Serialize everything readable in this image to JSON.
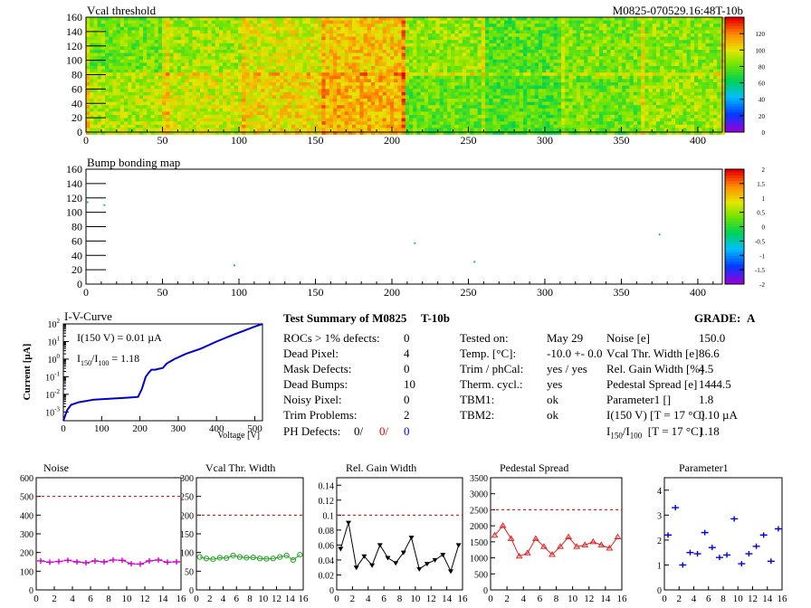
{
  "header": {
    "module_id": "M0825-070529.16:48T-10b"
  },
  "colors": {
    "noise": "#d000d0",
    "vcal": "#20a020",
    "gain": "#000000",
    "pedestal": "#e02020",
    "parameter1": "#0000e0",
    "limit": "#d00000",
    "iv": "#0000cc"
  },
  "chart_data": [
    {
      "type": "heatmap",
      "title": "Vcal threshold",
      "x_ticks": [
        "0",
        "50",
        "100",
        "150",
        "200",
        "250",
        "300",
        "350",
        "400"
      ],
      "y_ticks": [
        "0",
        "20",
        "40",
        "60",
        "80",
        "100",
        "120",
        "140",
        "160"
      ],
      "xlim": [
        0,
        416
      ],
      "ylim": [
        0,
        160
      ],
      "colorbar_ticks": [
        "0",
        "20",
        "40",
        "60",
        "80",
        "100",
        "120"
      ],
      "colorbar_range": [
        0,
        140
      ],
      "roc_blocks_top": [
        82,
        90,
        98,
        108,
        88,
        78,
        84,
        86
      ],
      "roc_blocks_bottom": [
        92,
        96,
        104,
        112,
        80,
        76,
        82,
        88
      ]
    },
    {
      "type": "heatmap",
      "title": "Bump bonding map",
      "x_ticks": [
        "0",
        "50",
        "100",
        "150",
        "200",
        "250",
        "300",
        "350",
        "400"
      ],
      "y_ticks": [
        "0",
        "20",
        "40",
        "60",
        "80",
        "100",
        "120",
        "140",
        "160"
      ],
      "xlim": [
        0,
        416
      ],
      "ylim": [
        0,
        160
      ],
      "colorbar_ticks": [
        "-2",
        "-1.5",
        "-1",
        "-0.5",
        "0",
        "0.5",
        "1",
        "1.5",
        "2"
      ],
      "colorbar_range": [
        -2,
        2
      ],
      "points": [
        [
          1,
          114
        ],
        [
          12,
          110
        ],
        [
          97,
          26
        ],
        [
          215,
          57
        ],
        [
          254,
          31
        ],
        [
          375,
          69
        ]
      ]
    },
    {
      "type": "line",
      "title": "I-V-Curve",
      "xlabel": "Voltage [V]",
      "ylabel": "Current [µA]",
      "x_ticks": [
        "0",
        "100",
        "200",
        "300",
        "400",
        "500"
      ],
      "xlim": [
        0,
        520
      ],
      "ylim_log10": [
        -3.5,
        2
      ],
      "y_tick_exponents": [
        -3,
        -2,
        -1,
        0,
        1,
        2
      ],
      "annotation_current_label": "I(150 V) = 0.01 µA",
      "annotation_ratio_label": "I",
      "annotation_ratio_sub1": "150",
      "annotation_ratio_mid": "/I",
      "annotation_ratio_sub2": "100",
      "annotation_ratio_value": "=  1.18",
      "points": [
        [
          0,
          -3.5
        ],
        [
          10,
          -2.9
        ],
        [
          20,
          -2.6
        ],
        [
          40,
          -2.45
        ],
        [
          80,
          -2.3
        ],
        [
          120,
          -2.25
        ],
        [
          160,
          -2.2
        ],
        [
          195,
          -2.15
        ],
        [
          205,
          -1.7
        ],
        [
          215,
          -1.0
        ],
        [
          222,
          -0.8
        ],
        [
          230,
          -0.6
        ],
        [
          240,
          -0.6
        ],
        [
          260,
          -0.5
        ],
        [
          270,
          -0.25
        ],
        [
          290,
          0.0
        ],
        [
          320,
          0.3
        ],
        [
          360,
          0.6
        ],
        [
          400,
          1.0
        ],
        [
          440,
          1.35
        ],
        [
          470,
          1.6
        ],
        [
          500,
          1.85
        ],
        [
          520,
          2.0
        ]
      ]
    },
    {
      "type": "scatter",
      "title": "Noise",
      "x_ticks": [
        "0",
        "2",
        "4",
        "6",
        "8",
        "10",
        "12",
        "14",
        "16"
      ],
      "y_ticks": [
        "0",
        "100",
        "200",
        "300",
        "400",
        "500",
        "600"
      ],
      "xlim": [
        0,
        16
      ],
      "ylim": [
        0,
        600
      ],
      "limit": 500,
      "x": [
        0,
        1,
        2,
        3,
        4,
        5,
        6,
        7,
        8,
        9,
        10,
        11,
        12,
        13,
        14,
        15
      ],
      "values": [
        155,
        148,
        152,
        158,
        150,
        145,
        155,
        150,
        160,
        158,
        140,
        138,
        155,
        160,
        148,
        150
      ]
    },
    {
      "type": "line",
      "title": "Vcal Thr. Width",
      "x_ticks": [
        "0",
        "2",
        "4",
        "6",
        "8",
        "10",
        "12",
        "14",
        "16"
      ],
      "y_ticks": [
        "0",
        "50",
        "100",
        "150",
        "200",
        "250",
        "300"
      ],
      "xlim": [
        0,
        16
      ],
      "ylim": [
        0,
        300
      ],
      "limit": 200,
      "x": [
        0,
        1,
        2,
        3,
        4,
        5,
        6,
        7,
        8,
        9,
        10,
        11,
        12,
        13,
        14,
        15
      ],
      "values": [
        88,
        84,
        82,
        86,
        85,
        92,
        88,
        86,
        87,
        84,
        83,
        84,
        88,
        92,
        80,
        94
      ]
    },
    {
      "type": "line",
      "title": "Rel. Gain Width",
      "x_ticks": [
        "0",
        "2",
        "4",
        "6",
        "8",
        "10",
        "12",
        "14",
        "16"
      ],
      "y_ticks": [
        "0",
        "0.02",
        "0.04",
        "0.06",
        "0.08",
        "0.1",
        "0.12",
        "0.14"
      ],
      "xlim": [
        0,
        16
      ],
      "ylim": [
        0,
        0.15
      ],
      "limit": 0.1,
      "x": [
        0,
        1,
        2,
        3,
        4,
        5,
        6,
        7,
        8,
        9,
        10,
        11,
        12,
        13,
        14,
        15
      ],
      "values": [
        0.055,
        0.09,
        0.03,
        0.045,
        0.033,
        0.06,
        0.043,
        0.036,
        0.05,
        0.07,
        0.028,
        0.035,
        0.04,
        0.047,
        0.025,
        0.06
      ]
    },
    {
      "type": "line",
      "title": "Pedestal Spread",
      "x_ticks": [
        "0",
        "2",
        "4",
        "6",
        "8",
        "10",
        "12",
        "14",
        "16"
      ],
      "y_ticks": [
        "0",
        "500",
        "1000",
        "1500",
        "2000",
        "2500",
        "3000",
        "3500"
      ],
      "xlim": [
        0,
        16
      ],
      "ylim": [
        0,
        3500
      ],
      "limit": 2500,
      "x": [
        0,
        1,
        2,
        3,
        4,
        5,
        6,
        7,
        8,
        9,
        10,
        11,
        12,
        13,
        14,
        15
      ],
      "values": [
        1700,
        2000,
        1600,
        1050,
        1150,
        1600,
        1350,
        1100,
        1350,
        1650,
        1350,
        1400,
        1500,
        1400,
        1300,
        1650
      ]
    },
    {
      "type": "scatter",
      "title": "Parameter1",
      "x_ticks": [
        "0",
        "2",
        "4",
        "6",
        "8",
        "10",
        "12",
        "14",
        "16"
      ],
      "y_ticks": [
        "0",
        "1",
        "2",
        "3",
        "4"
      ],
      "xlim": [
        0,
        16
      ],
      "ylim": [
        0,
        4.5
      ],
      "x": [
        0,
        1,
        2,
        3,
        4,
        5,
        6,
        7,
        8,
        9,
        10,
        11,
        12,
        13,
        14,
        15
      ],
      "values": [
        2.2,
        3.3,
        1.0,
        1.5,
        1.45,
        2.3,
        1.7,
        1.3,
        1.4,
        2.85,
        1.05,
        1.45,
        1.75,
        2.2,
        1.15,
        2.45
      ]
    }
  ],
  "summary": {
    "title": "Test Summary of M0825",
    "title_tag": "T-10b",
    "grade_label": "GRADE:",
    "grade_value": "A",
    "left_rows": [
      {
        "label": "ROCs > 1% defects:",
        "value": "0"
      },
      {
        "label": "Dead Pixel:",
        "value": "4"
      },
      {
        "label": "Mask Defects:",
        "value": "0"
      },
      {
        "label": "Dead Bumps:",
        "value": "10"
      },
      {
        "label": "Noisy Pixel:",
        "value": "0"
      },
      {
        "label": "Trim Problems:",
        "value": "2"
      }
    ],
    "ph_label": "PH Defects:",
    "ph_values": [
      "0/",
      "0/",
      "0"
    ],
    "mid_rows": [
      {
        "label": "Tested on:",
        "value": "May 29"
      },
      {
        "label": "Temp. [°C]:",
        "value": "-10.0 +- 0.0"
      },
      {
        "label": "Trim / phCal:",
        "value": "yes / yes"
      },
      {
        "label": "Therm. cycl.:",
        "value": "yes"
      },
      {
        "label": "TBM1:",
        "value": "ok"
      },
      {
        "label": "TBM2:",
        "value": "ok"
      }
    ],
    "right_rows": [
      {
        "label": "Noise [e]",
        "value": "150.0"
      },
      {
        "label": "Vcal Thr. Width [e]",
        "value": "86.6"
      },
      {
        "label": "Rel. Gain Width [%]",
        "value": "4.5"
      },
      {
        "label": "Pedestal Spread [e]",
        "value": "1444.5"
      },
      {
        "label": "Parameter1 []",
        "value": "1.8"
      },
      {
        "label": "I(150 V)  [T = 17 °C]",
        "value": "0.10 µA"
      }
    ],
    "ratio_row": {
      "prefix": "I",
      "sub1": "150",
      "mid": "/I",
      "sub2": "100",
      "suffix": "  [T = 17 °C]",
      "value": "1.18"
    }
  }
}
